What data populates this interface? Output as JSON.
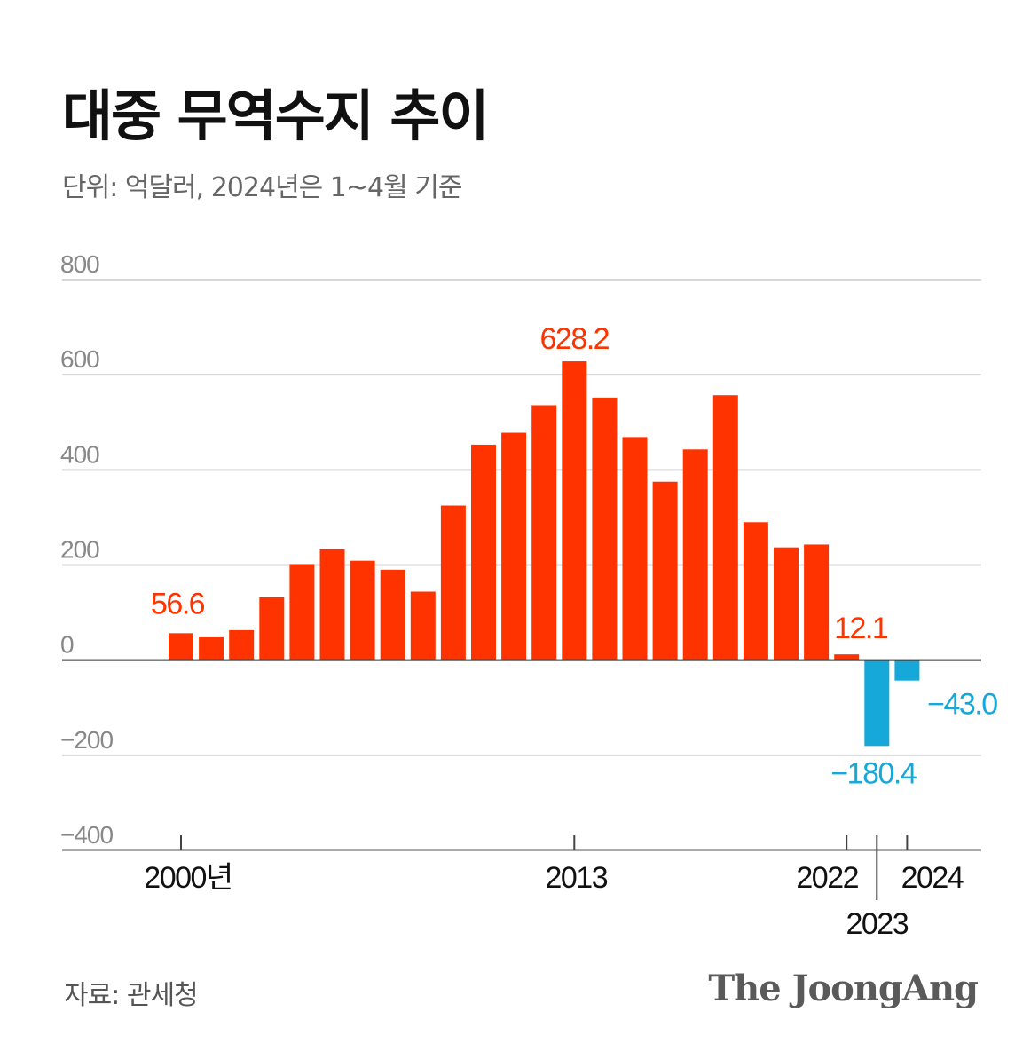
{
  "title": "대중 무역수지 추이",
  "subtitle": "단위: 억달러, 2024년은 1~4월 기준",
  "source": "자료: 관세청",
  "logo_text": "The JoongAng",
  "colors": {
    "positive": "#ff3300",
    "negative": "#16a8d8",
    "grid": "#d6d6d6",
    "axis": "#333333",
    "tick_label": "#888888"
  },
  "chart_data": {
    "type": "bar",
    "title": "대중 무역수지 추이",
    "unit": "억달러",
    "ylim": [
      -400,
      800
    ],
    "yticks": [
      800,
      600,
      400,
      200,
      0,
      -200,
      -400
    ],
    "ytick_labels": [
      "800",
      "600",
      "400",
      "200",
      "0",
      "−200",
      "−400"
    ],
    "categories": [
      2000,
      2001,
      2002,
      2003,
      2004,
      2005,
      2006,
      2007,
      2008,
      2009,
      2010,
      2011,
      2012,
      2013,
      2014,
      2015,
      2016,
      2017,
      2018,
      2019,
      2020,
      2021,
      2022,
      2023,
      2024
    ],
    "values": [
      56.6,
      48,
      63,
      132,
      202,
      233,
      209,
      190,
      144,
      325,
      453,
      478,
      536,
      628.2,
      552,
      469,
      375,
      443,
      557,
      290,
      237,
      243,
      12.1,
      -180.4,
      -43.0
    ],
    "value_labels": [
      {
        "year": 2000,
        "text": "56.6"
      },
      {
        "year": 2013,
        "text": "628.2"
      },
      {
        "year": 2022,
        "text": "12.1"
      },
      {
        "year": 2023,
        "text": "−180.4"
      },
      {
        "year": 2024,
        "text": "−43.0"
      }
    ],
    "xtick_labels": [
      {
        "year": 2000,
        "text": "2000년"
      },
      {
        "year": 2013,
        "text": "2013"
      },
      {
        "year": 2022,
        "text": "2022"
      },
      {
        "year": 2023,
        "text": "2023"
      },
      {
        "year": 2024,
        "text": "2024"
      }
    ]
  }
}
